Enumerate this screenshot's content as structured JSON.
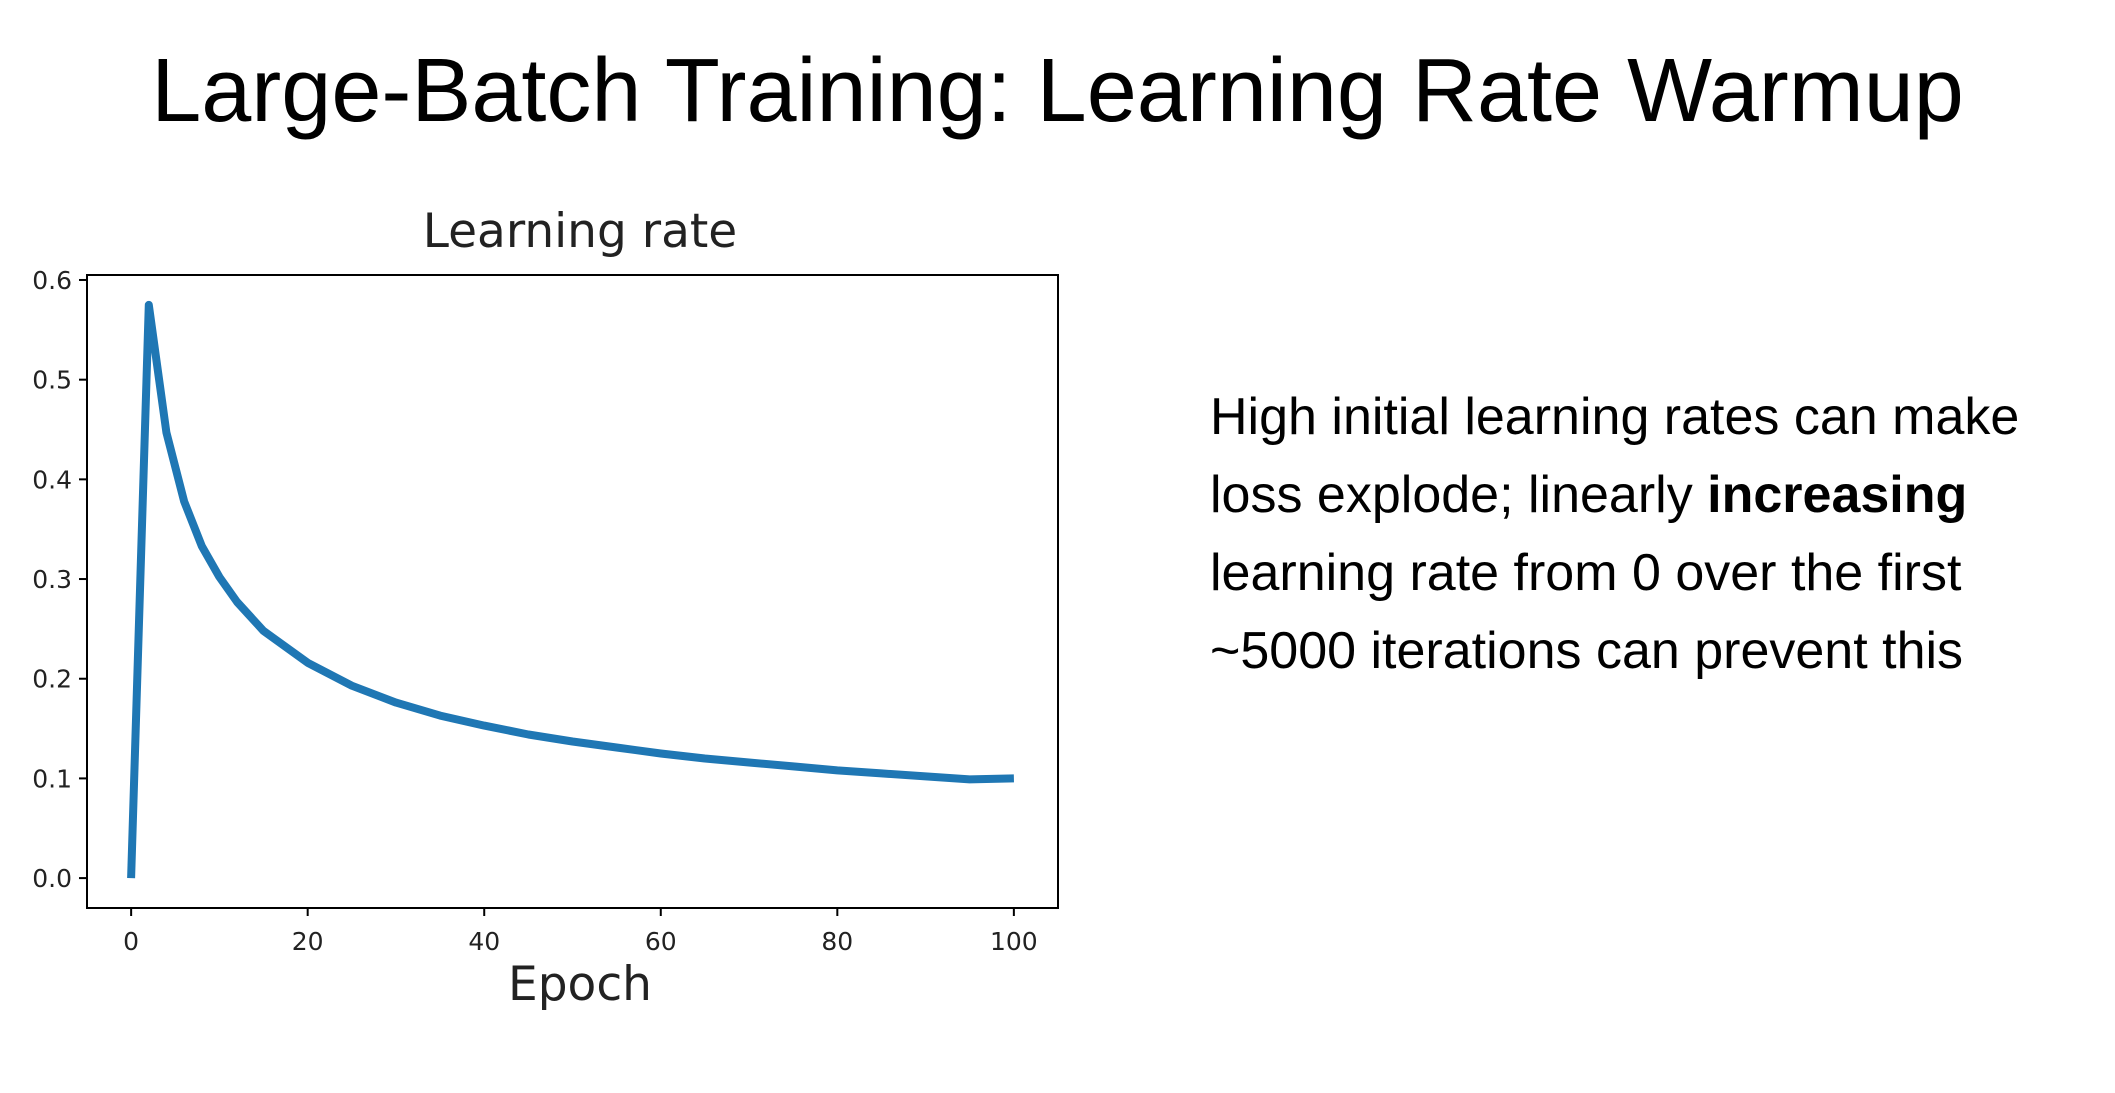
{
  "slide": {
    "title": "Large-Batch Training: Learning Rate Warmup",
    "text_before": "High initial learning rates can make loss explode; linearly ",
    "text_bold": "increasing",
    "text_after": " learning rate from 0 over the first ~5000 iterations can prevent this"
  },
  "colors": {
    "line": "#1f77b4",
    "axes": "#000000"
  },
  "chart_data": {
    "type": "line",
    "title": "Learning rate",
    "xlabel": "Epoch",
    "ylabel": "",
    "xlim": [
      -5,
      105
    ],
    "ylim": [
      -0.03,
      0.605
    ],
    "xticks": [
      0,
      20,
      40,
      60,
      80,
      100
    ],
    "yticks": [
      0.0,
      0.1,
      0.2,
      0.3,
      0.4,
      0.5,
      0.6
    ],
    "xtick_labels": [
      "0",
      "20",
      "40",
      "60",
      "80",
      "100"
    ],
    "ytick_labels": [
      "0.0",
      "0.1",
      "0.2",
      "0.3",
      "0.4",
      "0.5",
      "0.6"
    ],
    "grid": false,
    "legend": "none",
    "series": [
      {
        "x": [
          0,
          2,
          4,
          6,
          8,
          10,
          12,
          15,
          20,
          25,
          30,
          35,
          40,
          45,
          50,
          55,
          60,
          65,
          70,
          75,
          80,
          85,
          90,
          95,
          100
        ],
        "y": [
          0.0,
          0.575,
          0.447,
          0.378,
          0.333,
          0.302,
          0.277,
          0.248,
          0.216,
          0.193,
          0.176,
          0.163,
          0.153,
          0.144,
          0.137,
          0.131,
          0.125,
          0.12,
          0.116,
          0.112,
          0.108,
          0.105,
          0.102,
          0.099,
          0.1
        ]
      }
    ]
  }
}
